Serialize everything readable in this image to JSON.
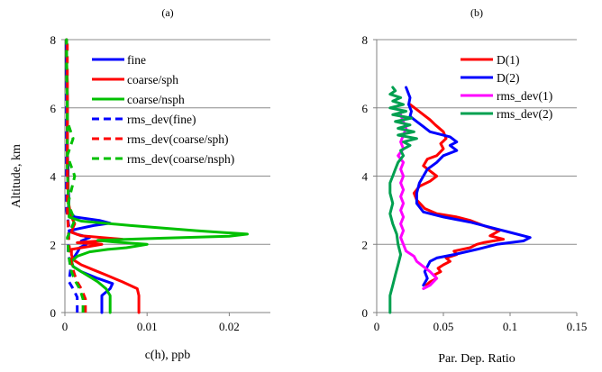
{
  "chart_data": [
    {
      "panel_label": "(a)",
      "type": "line",
      "xlabel": "c(h), ppb",
      "ylabel": "Altitude, km",
      "xlim": [
        0,
        0.025
      ],
      "ylim": [
        0,
        8
      ],
      "xticks": [
        "0",
        "0.01",
        "0.02"
      ],
      "xtick_values": [
        0,
        0.01,
        0.02
      ],
      "yticks": [
        "0",
        "2",
        "4",
        "6",
        "8"
      ],
      "ytick_values": [
        0,
        2,
        4,
        6,
        8
      ],
      "grid": "horizontal",
      "legend_placement": "top-right",
      "series": [
        {
          "name": "fine",
          "color": "#0000ff",
          "dash": "solid",
          "x": [
            0.0045,
            0.0045,
            0.0055,
            0.0058,
            0.004,
            0.002,
            0.001,
            0.0008,
            0.0012,
            0.0016,
            0.0018,
            0.0026,
            0.002,
            0.003,
            0.0014,
            0.0005,
            0.0015,
            0.0035,
            0.0055,
            0.0042,
            0.0012,
            0.0004,
            0.0005,
            0.0004,
            0.0004,
            0.0003,
            0.0003,
            0.0003,
            0.0003,
            0.0002,
            0.0002,
            0.0002
          ],
          "y": [
            0,
            0.5,
            0.7,
            0.85,
            1.0,
            1.2,
            1.35,
            1.5,
            1.65,
            1.8,
            1.9,
            2.0,
            2.1,
            2.2,
            2.3,
            2.4,
            2.45,
            2.55,
            2.62,
            2.7,
            2.8,
            3.0,
            3.3,
            3.7,
            4.2,
            4.8,
            5.3,
            5.8,
            6.4,
            7.0,
            7.5,
            8.0
          ]
        },
        {
          "name": "coarse/sph",
          "color": "#ff0000",
          "dash": "solid",
          "x": [
            0.009,
            0.009,
            0.0088,
            0.007,
            0.005,
            0.0035,
            0.002,
            0.001,
            0.0008,
            0.0008,
            0.0045,
            0.0015,
            0.007,
            0.002,
            0.0008,
            0.001,
            0.0012,
            0.001,
            0.0008,
            0.0006,
            0.0004,
            0.0004,
            0.0003,
            0.0003,
            0.0003,
            0.0003,
            0.0003,
            0.0003,
            0.0002,
            0.0002
          ],
          "y": [
            0,
            0.5,
            0.7,
            0.9,
            1.1,
            1.25,
            1.4,
            1.55,
            1.7,
            1.85,
            2.0,
            2.05,
            2.15,
            2.25,
            2.35,
            2.5,
            2.6,
            2.7,
            2.8,
            3.0,
            3.3,
            3.8,
            4.3,
            4.8,
            5.2,
            5.7,
            6.2,
            6.8,
            7.4,
            8.0
          ]
        },
        {
          "name": "coarse/nsph",
          "color": "#00c000",
          "dash": "solid",
          "x": [
            0.0055,
            0.0055,
            0.005,
            0.004,
            0.003,
            0.002,
            0.001,
            0.0008,
            0.0015,
            0.003,
            0.0052,
            0.0075,
            0.01,
            0.006,
            0.004,
            0.012,
            0.02,
            0.0222,
            0.016,
            0.008,
            0.002,
            0.0005,
            0.0005,
            0.0004,
            0.0003,
            0.0003,
            0.0003,
            0.0003,
            0.0002,
            0.0002
          ],
          "y": [
            0,
            0.5,
            0.7,
            0.9,
            1.05,
            1.2,
            1.35,
            1.5,
            1.65,
            1.78,
            1.85,
            1.9,
            2.0,
            2.07,
            2.12,
            2.18,
            2.24,
            2.3,
            2.4,
            2.55,
            2.68,
            2.8,
            3.0,
            3.5,
            4.2,
            4.9,
            5.5,
            6.2,
            7.0,
            8.0
          ]
        },
        {
          "name": "rms_dev(fine)",
          "color": "#0000ff",
          "dash": "dashed",
          "x": [
            0.0015,
            0.0015,
            0.001,
            0.0005,
            0.0007,
            0.0004,
            0.0005,
            0.0002,
            0.0002,
            0.0002
          ],
          "y": [
            0,
            0.45,
            0.7,
            0.9,
            1.3,
            1.8,
            2.5,
            3.0,
            5.0,
            8.0
          ]
        },
        {
          "name": "rms_dev(coarse/sph)",
          "color": "#ff0000",
          "dash": "dashed",
          "x": [
            0.0025,
            0.0025,
            0.002,
            0.0015,
            0.0012,
            0.0008,
            0.0005,
            0.0003,
            0.0003
          ],
          "y": [
            0,
            0.4,
            0.7,
            0.9,
            1.1,
            1.4,
            2.0,
            3.0,
            8.0
          ]
        },
        {
          "name": "rms_dev(coarse/nsph)",
          "color": "#00c000",
          "dash": "dashed",
          "x": [
            0.0022,
            0.0022,
            0.0018,
            0.0012,
            0.0008,
            0.0005,
            0.0003,
            0.0012,
            0.0004,
            0.0012,
            0.0003,
            0.001,
            0.0003,
            0.0002
          ],
          "y": [
            0,
            0.4,
            0.7,
            0.95,
            1.2,
            1.6,
            2.2,
            2.7,
            3.2,
            4.0,
            4.6,
            5.1,
            5.6,
            8.0
          ]
        }
      ]
    },
    {
      "panel_label": "(b)",
      "type": "line",
      "xlabel": "Par. Dep. Ratio",
      "ylabel": "",
      "xlim": [
        0,
        0.15
      ],
      "ylim": [
        0,
        8
      ],
      "xticks": [
        "0",
        "0.05",
        "0.1",
        "0.15"
      ],
      "xtick_values": [
        0,
        0.05,
        0.1,
        0.15
      ],
      "yticks": [
        "0",
        "2",
        "4",
        "6",
        "8"
      ],
      "ytick_values": [
        0,
        2,
        4,
        6,
        8
      ],
      "grid": "horizontal",
      "legend_placement": "top-right",
      "series": [
        {
          "name": "D(1)",
          "color": "#ff0000",
          "dash": "solid",
          "x": [
            0.037,
            0.04,
            0.045,
            0.043,
            0.048,
            0.046,
            0.05,
            0.055,
            0.052,
            0.06,
            0.058,
            0.07,
            0.075,
            0.08,
            0.095,
            0.085,
            0.092,
            0.08,
            0.07,
            0.06,
            0.045,
            0.036,
            0.03,
            0.028,
            0.032,
            0.04,
            0.045,
            0.04,
            0.035,
            0.038,
            0.045,
            0.05,
            0.048,
            0.052,
            0.05,
            0.044,
            0.04,
            0.035,
            0.03,
            0.025
          ],
          "y": [
            0.8,
            0.9,
            1.0,
            1.1,
            1.2,
            1.3,
            1.4,
            1.5,
            1.6,
            1.7,
            1.8,
            1.9,
            2.0,
            2.05,
            2.15,
            2.25,
            2.4,
            2.55,
            2.7,
            2.8,
            2.9,
            3.05,
            3.3,
            3.5,
            3.7,
            3.85,
            4.0,
            4.15,
            4.3,
            4.5,
            4.6,
            4.8,
            4.95,
            5.1,
            5.3,
            5.5,
            5.65,
            5.8,
            5.95,
            6.1
          ]
        },
        {
          "name": "D(2)",
          "color": "#0000ff",
          "dash": "solid",
          "x": [
            0.035,
            0.038,
            0.036,
            0.04,
            0.045,
            0.058,
            0.075,
            0.09,
            0.11,
            0.115,
            0.1,
            0.085,
            0.07,
            0.05,
            0.035,
            0.03,
            0.03,
            0.032,
            0.035,
            0.038,
            0.045,
            0.05,
            0.06,
            0.055,
            0.06,
            0.055,
            0.04,
            0.035,
            0.03,
            0.025,
            0.026,
            0.024,
            0.025,
            0.022
          ],
          "y": [
            0.8,
            1.0,
            1.2,
            1.5,
            1.6,
            1.7,
            1.85,
            2.0,
            2.1,
            2.2,
            2.35,
            2.5,
            2.65,
            2.8,
            2.95,
            3.2,
            3.5,
            3.8,
            4.0,
            4.2,
            4.4,
            4.6,
            4.75,
            4.9,
            5.0,
            5.15,
            5.3,
            5.45,
            5.6,
            5.75,
            5.9,
            6.1,
            6.3,
            6.6
          ]
        },
        {
          "name": "rms_dev(1)",
          "color": "#ff00ff",
          "dash": "solid",
          "x": [
            0.035,
            0.04,
            0.045,
            0.04,
            0.035,
            0.03,
            0.028,
            0.022,
            0.02,
            0.018,
            0.02,
            0.018,
            0.02,
            0.018,
            0.02,
            0.018,
            0.02,
            0.018,
            0.02,
            0.018,
            0.02,
            0.016,
            0.02,
            0.018,
            0.02,
            0.022,
            0.02,
            0.018
          ],
          "y": [
            0.7,
            0.8,
            1.0,
            1.2,
            1.35,
            1.5,
            1.65,
            1.8,
            2.0,
            2.2,
            2.4,
            2.6,
            2.8,
            3.0,
            3.2,
            3.4,
            3.6,
            3.8,
            4.0,
            4.2,
            4.4,
            4.6,
            4.8,
            5.0,
            5.2,
            5.4,
            5.6,
            5.8
          ]
        },
        {
          "name": "rms_dev(2)",
          "color": "#00a050",
          "dash": "solid",
          "x": [
            0.01,
            0.01,
            0.012,
            0.014,
            0.016,
            0.018,
            0.016,
            0.015,
            0.012,
            0.01,
            0.012,
            0.01,
            0.01,
            0.012,
            0.014,
            0.016,
            0.02,
            0.018,
            0.025,
            0.02,
            0.03,
            0.016,
            0.028,
            0.016,
            0.025,
            0.014,
            0.026,
            0.012,
            0.022,
            0.01,
            0.02,
            0.012,
            0.018,
            0.01,
            0.014,
            0.012
          ],
          "y": [
            0,
            0.5,
            0.8,
            1.1,
            1.4,
            1.7,
            2.0,
            2.3,
            2.6,
            2.9,
            3.2,
            3.5,
            3.8,
            4.0,
            4.2,
            4.4,
            4.6,
            4.75,
            4.9,
            5.0,
            5.1,
            5.2,
            5.3,
            5.4,
            5.5,
            5.6,
            5.7,
            5.8,
            5.9,
            6.0,
            6.1,
            6.2,
            6.3,
            6.4,
            6.5,
            6.6
          ]
        }
      ]
    }
  ]
}
